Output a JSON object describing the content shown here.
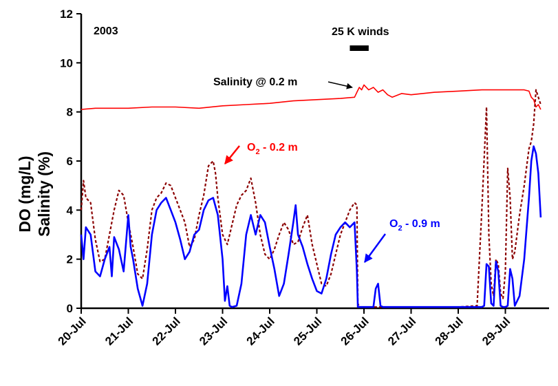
{
  "chart_data": {
    "type": "line",
    "title": "2003",
    "ylabel_lines": [
      "DO (mg/L)",
      "Salinity (%)"
    ],
    "xlabel": "",
    "ylim": [
      0,
      12
    ],
    "yticks": [
      "0",
      "2",
      "4",
      "6",
      "8",
      "10",
      "12"
    ],
    "xlim": [
      0,
      9.75
    ],
    "xticks": [
      "20-Jul",
      "21-Jul",
      "22-Jul",
      "23-Jul",
      "24-Jul",
      "25-Jul",
      "26-Jul",
      "27-Jul",
      "28-Jul",
      "29-Jul"
    ],
    "grid": false,
    "series": [
      {
        "name": "Salinity @ 0.2 m",
        "color": "#ff0000",
        "style": "solid",
        "x": [
          0,
          0.3,
          0.6,
          1.0,
          1.5,
          2.0,
          2.5,
          3.0,
          3.5,
          4.0,
          4.5,
          5.0,
          5.5,
          5.8,
          5.85,
          5.9,
          5.95,
          6.0,
          6.1,
          6.2,
          6.3,
          6.4,
          6.5,
          6.6,
          6.8,
          7.0,
          7.5,
          8.0,
          8.5,
          9.0,
          9.3,
          9.4,
          9.5,
          9.55,
          9.6,
          9.65,
          9.7,
          9.75
        ],
        "y": [
          8.1,
          8.15,
          8.15,
          8.15,
          8.2,
          8.2,
          8.15,
          8.25,
          8.3,
          8.35,
          8.45,
          8.5,
          8.55,
          8.6,
          8.8,
          9.0,
          8.9,
          9.1,
          8.9,
          9.0,
          8.8,
          8.9,
          8.7,
          8.6,
          8.75,
          8.7,
          8.8,
          8.85,
          8.9,
          8.9,
          8.9,
          8.9,
          8.85,
          8.6,
          8.5,
          8.2,
          8.3,
          8.1
        ]
      },
      {
        "name": "O2 - 0.2 m",
        "color": "#8b0000",
        "style": "dashed",
        "x": [
          0,
          0.05,
          0.1,
          0.2,
          0.3,
          0.4,
          0.5,
          0.6,
          0.7,
          0.8,
          0.9,
          1.0,
          1.1,
          1.2,
          1.3,
          1.4,
          1.5,
          1.6,
          1.7,
          1.8,
          1.9,
          2.0,
          2.1,
          2.2,
          2.3,
          2.4,
          2.5,
          2.6,
          2.7,
          2.8,
          2.85,
          2.9,
          3.0,
          3.1,
          3.2,
          3.3,
          3.4,
          3.5,
          3.6,
          3.7,
          3.8,
          3.9,
          4.0,
          4.1,
          4.2,
          4.3,
          4.4,
          4.5,
          4.6,
          4.7,
          4.8,
          4.9,
          5.0,
          5.1,
          5.2,
          5.3,
          5.4,
          5.5,
          5.6,
          5.7,
          5.8,
          5.85,
          5.87,
          5.9,
          6.5,
          7.0,
          7.5,
          8.0,
          8.4,
          8.5,
          8.6,
          8.65,
          8.7,
          8.75,
          8.8,
          8.85,
          8.9,
          8.95,
          9.0,
          9.05,
          9.1,
          9.15,
          9.2,
          9.3,
          9.4,
          9.5,
          9.55,
          9.6,
          9.65,
          9.7,
          9.75
        ],
        "y": [
          4.0,
          5.2,
          4.5,
          4.3,
          2.8,
          1.9,
          2.0,
          3.0,
          4.0,
          4.8,
          4.6,
          3.5,
          2.5,
          1.4,
          1.2,
          2.4,
          4.0,
          4.5,
          4.7,
          5.1,
          5.0,
          4.5,
          4.0,
          3.5,
          2.5,
          2.8,
          3.8,
          4.6,
          5.8,
          6.0,
          5.5,
          4.5,
          3.0,
          2.6,
          3.4,
          4.2,
          4.6,
          4.8,
          5.3,
          4.3,
          3.0,
          2.2,
          2.0,
          2.4,
          3.0,
          3.5,
          3.2,
          2.6,
          2.7,
          3.3,
          3.8,
          2.6,
          1.8,
          1.0,
          0.9,
          1.4,
          2.2,
          3.0,
          3.5,
          4.0,
          4.3,
          4.2,
          0.2,
          0.05,
          0.05,
          0.05,
          0.05,
          0.05,
          0.1,
          4.0,
          8.2,
          3.0,
          1.0,
          0.5,
          2.0,
          1.8,
          0.6,
          0.4,
          1.5,
          5.7,
          4.5,
          2.0,
          2.3,
          3.8,
          5.0,
          6.5,
          6.8,
          7.5,
          8.9,
          8.6,
          8.3
        ]
      },
      {
        "name": "O2 - 0.9 m",
        "color": "#0000ff",
        "style": "solid",
        "x": [
          0,
          0.05,
          0.1,
          0.2,
          0.3,
          0.4,
          0.5,
          0.6,
          0.65,
          0.7,
          0.8,
          0.9,
          1.0,
          1.05,
          1.1,
          1.2,
          1.3,
          1.4,
          1.5,
          1.6,
          1.7,
          1.8,
          1.9,
          2.0,
          2.1,
          2.2,
          2.3,
          2.4,
          2.5,
          2.6,
          2.7,
          2.8,
          2.9,
          3.0,
          3.05,
          3.1,
          3.15,
          3.2,
          3.3,
          3.4,
          3.5,
          3.6,
          3.7,
          3.8,
          3.9,
          4.0,
          4.1,
          4.2,
          4.3,
          4.4,
          4.5,
          4.55,
          4.6,
          4.7,
          4.8,
          4.9,
          5.0,
          5.1,
          5.2,
          5.3,
          5.4,
          5.5,
          5.6,
          5.7,
          5.8,
          5.85,
          5.87,
          5.9,
          6.2,
          6.25,
          6.3,
          6.35,
          6.4,
          7.0,
          8.0,
          8.5,
          8.55,
          8.6,
          8.65,
          8.7,
          8.75,
          8.8,
          8.85,
          8.9,
          8.95,
          9.0,
          9.05,
          9.1,
          9.15,
          9.2,
          9.3,
          9.4,
          9.5,
          9.55,
          9.6,
          9.65,
          9.7,
          9.75
        ],
        "y": [
          3.0,
          2.0,
          3.3,
          3.0,
          1.5,
          1.3,
          2.0,
          2.5,
          1.3,
          2.9,
          2.4,
          1.5,
          3.8,
          2.5,
          2.0,
          0.8,
          0.1,
          1.0,
          3.0,
          4.0,
          4.3,
          4.5,
          4.0,
          3.5,
          2.8,
          2.0,
          2.3,
          3.0,
          3.2,
          4.0,
          4.4,
          4.5,
          3.8,
          2.0,
          0.3,
          0.9,
          0.1,
          0.05,
          0.1,
          1.0,
          3.0,
          3.8,
          3.0,
          3.8,
          3.5,
          2.5,
          1.6,
          0.5,
          1.0,
          2.2,
          3.5,
          4.2,
          3.0,
          2.5,
          1.8,
          1.2,
          0.7,
          0.6,
          1.2,
          2.2,
          3.0,
          3.3,
          3.5,
          3.3,
          3.5,
          1.5,
          0.05,
          0.05,
          0.05,
          0.8,
          1.0,
          0.1,
          0.05,
          0.05,
          0.05,
          0.05,
          0.1,
          1.8,
          1.7,
          0.2,
          0.1,
          1.9,
          1.5,
          0.1,
          0.05,
          0.05,
          0.1,
          1.6,
          1.2,
          0.1,
          0.5,
          2.0,
          4.5,
          6.0,
          6.6,
          6.3,
          5.5,
          3.7
        ]
      }
    ],
    "annotations": {
      "year": "2003",
      "wind_label": "25 K winds",
      "wind_period": [
        5.7,
        6.1
      ],
      "salinity_label": "Salinity @ 0.2 m",
      "o2_top_label_prefix": "O",
      "o2_top_label_sub": "2",
      "o2_top_label_suffix": " - 0.2 m",
      "o2_top_color": "#ff0000",
      "o2_bottom_label_prefix": "O",
      "o2_bottom_label_sub": "2",
      "o2_bottom_label_suffix": " - 0.9 m",
      "o2_bottom_color": "#0000ff"
    }
  }
}
